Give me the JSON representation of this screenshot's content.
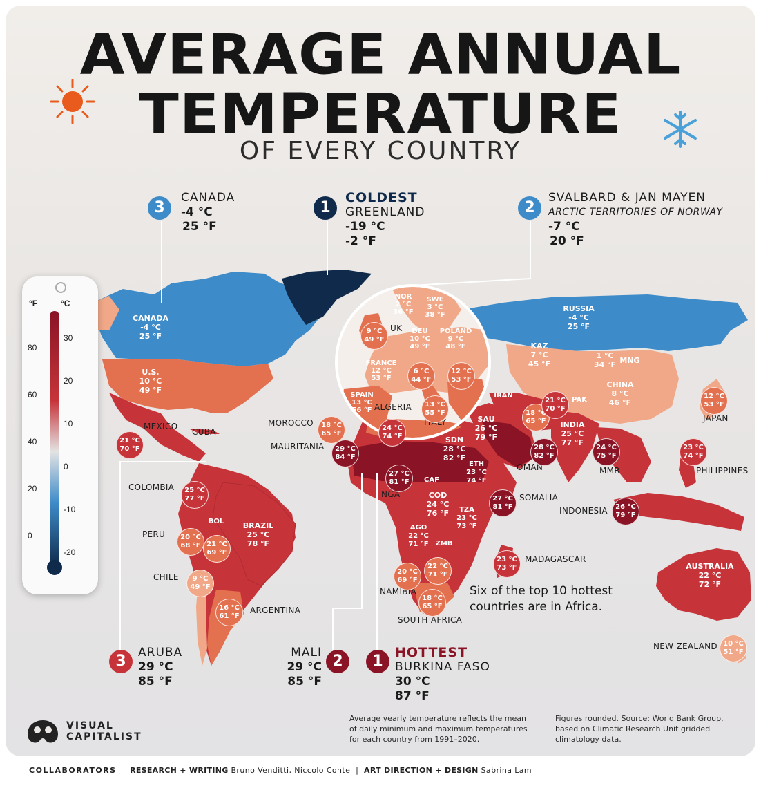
{
  "title": {
    "line1": "AVERAGE ANNUAL",
    "line2": "TEMPERATURE",
    "subtitle": "OF EVERY COUNTRY"
  },
  "colors": {
    "coldest": "#0f2a4a",
    "cold": "#3d8bc9",
    "mild": "#f0a888",
    "warm": "#e3704f",
    "hot": "#c6343a",
    "hottest": "#8a1425",
    "sun": "#e95b1c",
    "snow": "#4aa0d8"
  },
  "icons": {
    "sun": "sun-icon",
    "snow": "snowflake-icon",
    "logo": "visual-capitalist-logo-icon",
    "thermometer": "thermometer-icon"
  },
  "callouts": {
    "canada": {
      "rank": "3",
      "name": "CANADA",
      "c": "-4 °C",
      "f": "25 °F"
    },
    "greenland": {
      "rank": "1",
      "heading": "COLDEST",
      "name": "GREENLAND",
      "c": "-19 °C",
      "f": "-2 °F"
    },
    "svalbard": {
      "rank": "2",
      "name": "SVALBARD & JAN MAYEN",
      "sub": "ARCTIC TERRITORIES OF NORWAY",
      "c": "-7 °C",
      "f": "20 °F"
    },
    "aruba": {
      "rank": "3",
      "name": "ARUBA",
      "c": "29 °C",
      "f": "85 °F"
    },
    "mali": {
      "rank": "2",
      "name": "MALI",
      "c": "29 °C",
      "f": "85 °F"
    },
    "burkina": {
      "rank": "1",
      "heading": "HOTTEST",
      "name": "BURKINA FASO",
      "c": "30 °C",
      "f": "87 °F"
    }
  },
  "thermometer": {
    "f_label": "°F",
    "c_label": "°C",
    "f_ticks": [
      "80",
      "60",
      "40",
      "20",
      "0"
    ],
    "c_ticks": [
      "30",
      "20",
      "10",
      "0",
      "-10",
      "-20"
    ]
  },
  "map_labels": {
    "canada_name": "CANADA",
    "canada_c": "-4 °C",
    "canada_f": "25 °F",
    "us_name": "U.S.",
    "us_c": "10 °C",
    "us_f": "49 °F",
    "russia_name": "RUSSIA",
    "russia_c": "-4 °C",
    "russia_f": "25 °F",
    "kaz_name": "KAZ",
    "kaz_c": "7 °C",
    "kaz_f": "45 °F",
    "mng_c": "1 °C",
    "mng_f": "34 °F",
    "mng_name": "MNG",
    "china_name": "CHINA",
    "china_c": "8 °C",
    "china_f": "46 °F",
    "australia_name": "AUSTRALIA",
    "australia_c": "22 °C",
    "australia_f": "72 °F",
    "brazil_name": "BRAZIL",
    "brazil_c": "25 °C",
    "brazil_f": "78 °F",
    "nor_name": "NOR",
    "nor_c": "2 °C",
    "nor_f": "36 °F",
    "swe_name": "SWE",
    "swe_c": "3 °C",
    "swe_f": "38 °F",
    "deu_name": "DEU",
    "deu_c": "10 °C",
    "deu_f": "49 °F",
    "poland_name": "POLAND",
    "poland_c": "9 °C",
    "poland_f": "48 °F",
    "france_name": "FRANCE",
    "france_c": "12 °C",
    "france_f": "53 °F",
    "spain_name": "SPAIN",
    "spain_c": "13 °C",
    "spain_f": "56 °F",
    "india_name": "INDIA",
    "india_c": "25 °C",
    "india_f": "77 °F",
    "cod_name": "COD",
    "cod_c": "24 °C",
    "cod_f": "76 °F",
    "son_name": "SDN",
    "son_c": "28 °C",
    "son_f": "82 °F",
    "sau_name": "SAU",
    "sau_c": "26 °C",
    "sau_f": "79 °F",
    "eth_name": "ETH",
    "eth_c": "23 °C",
    "eth_f": "74 °F",
    "tza_name": "TZA",
    "tza_c": "23 °C",
    "tza_f": "73 °F",
    "ago_name": "AGO",
    "ago_c": "22 °C",
    "ago_f": "71 °F",
    "zmb_name": "ZMB",
    "caf_name": "CAF",
    "iran_name": "IRAN",
    "pak_name": "PAK",
    "bol_name": "BOL"
  },
  "country_labels": {
    "uk": "UK",
    "algeria": "ALGERIA",
    "italy": "ITALY",
    "morocco": "MOROCCO",
    "mexico": "MEXICO",
    "cuba": "CUBA",
    "mauritania": "MAURITANIA",
    "colombia": "COLOMBIA",
    "peru": "PERU",
    "chile": "CHILE",
    "argentina": "ARGENTINA",
    "nga": "NGA",
    "namibia": "NAMIBIA",
    "south_africa": "SOUTH AFRICA",
    "madagascar": "MADAGASCAR",
    "somalia": "SOMALIA",
    "oman": "OMAN",
    "indonesia": "INDONESIA",
    "mmr": "MMR",
    "philippines": "PHILIPPINES",
    "japan": "JAPAN",
    "new_zealand": "NEW ZEALAND"
  },
  "bubbles": [
    {
      "id": "uk",
      "c": "9 °C",
      "f": "49 °F"
    },
    {
      "id": "italy",
      "c": "6 °C",
      "f": "44 °F"
    },
    {
      "id": "balkan",
      "c": "12 °C",
      "f": "53 °F"
    },
    {
      "id": "italy-south",
      "c": "13 °C",
      "f": "55 °F"
    },
    {
      "id": "morocco",
      "c": "18 °C",
      "f": "65 °F"
    },
    {
      "id": "algeria",
      "c": "24 °C",
      "f": "74 °F"
    },
    {
      "id": "mexico",
      "c": "21 °C",
      "f": "70 °F"
    },
    {
      "id": "mauritania",
      "c": "29 °C",
      "f": "84 °F"
    },
    {
      "id": "nga",
      "c": "27 °C",
      "f": "81 °F"
    },
    {
      "id": "colombia",
      "c": "25 °C",
      "f": "77 °F"
    },
    {
      "id": "peru",
      "c": "20 °C",
      "f": "68 °F"
    },
    {
      "id": "bol",
      "c": "21 °C",
      "f": "69 °F"
    },
    {
      "id": "chile",
      "c": "9 °C",
      "f": "49 °F"
    },
    {
      "id": "argentina",
      "c": "16 °C",
      "f": "61 °F"
    },
    {
      "id": "namibia",
      "c": "20 °C",
      "f": "69 °F"
    },
    {
      "id": "zmb",
      "c": "22 °C",
      "f": "71 °F"
    },
    {
      "id": "south-africa",
      "c": "18 °C",
      "f": "65 °F"
    },
    {
      "id": "madagascar",
      "c": "23 °C",
      "f": "73 °F"
    },
    {
      "id": "somalia",
      "c": "27 °C",
      "f": "81 °F"
    },
    {
      "id": "oman",
      "c": "28 °C",
      "f": "82 °F"
    },
    {
      "id": "iran",
      "c": "18 °C",
      "f": "65 °F"
    },
    {
      "id": "pak",
      "c": "21 °C",
      "f": "70 °F"
    },
    {
      "id": "mmr",
      "c": "24 °C",
      "f": "75 °F"
    },
    {
      "id": "indonesia",
      "c": "26 °C",
      "f": "79 °F"
    },
    {
      "id": "philippines",
      "c": "23 °C",
      "f": "74 °F"
    },
    {
      "id": "japan",
      "c": "12 °C",
      "f": "53 °F"
    },
    {
      "id": "new-zealand",
      "c": "10 °C",
      "f": "51 °F"
    }
  ],
  "africa_note": {
    "line1": "Six of the top 10 hottest",
    "line2": "countries are in Africa."
  },
  "brand": {
    "line1": "VISUAL",
    "line2": "CAPITALIST"
  },
  "notes": {
    "left": [
      "Average yearly temperature reflects the mean",
      "of daily minimum and maximum temperatures",
      "for each country from 1991–2020."
    ],
    "right": [
      "Figures rounded. Source: World Bank Group,",
      "based on Climatic Research Unit gridded",
      "climatology data."
    ]
  },
  "footer": {
    "collaborators": "COLLABORATORS",
    "research_label": "RESEARCH + WRITING",
    "research_names": "Bruno Venditti, Niccolo Conte",
    "sep": "|",
    "design_label": "ART DIRECTION + DESIGN",
    "design_names": "Sabrina Lam"
  }
}
